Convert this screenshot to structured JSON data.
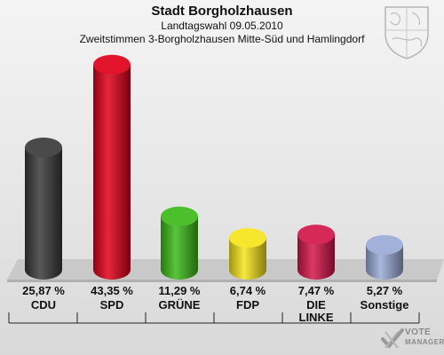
{
  "header": {
    "title": "Stadt Borgholzhausen",
    "subtitle": "Landtagswahl 09.05.2010",
    "subtitle2": "Zweitstimmen 3-Borgholzhausen Mitte-Süd und Hamlingdorf"
  },
  "watermark": {
    "line1": "VOTE",
    "line2": "MANAGER"
  },
  "chart_data": {
    "type": "bar",
    "title": "Stadt Borgholzhausen",
    "categories": [
      "CDU",
      "SPD",
      "GRÜNE",
      "FDP",
      "DIE LINKE",
      "Sonstige"
    ],
    "category_lines": [
      [
        "CDU"
      ],
      [
        "SPD"
      ],
      [
        "GRÜNE"
      ],
      [
        "FDP"
      ],
      [
        "DIE",
        "LINKE"
      ],
      [
        "Sonstige"
      ]
    ],
    "values": [
      25.87,
      43.35,
      11.29,
      6.74,
      7.47,
      5.27
    ],
    "value_labels": [
      "25,87 %",
      "43,35 %",
      "11,29 %",
      "6,74 %",
      "7,47 %",
      "5,27 %"
    ],
    "colors": [
      "#3a3a3a",
      "#e0001a",
      "#3cbb1a",
      "#f5e51c",
      "#d4164a",
      "#9aaad6"
    ],
    "unit": "%",
    "ylim": [
      0,
      45
    ],
    "grid": false,
    "legend": "none"
  }
}
